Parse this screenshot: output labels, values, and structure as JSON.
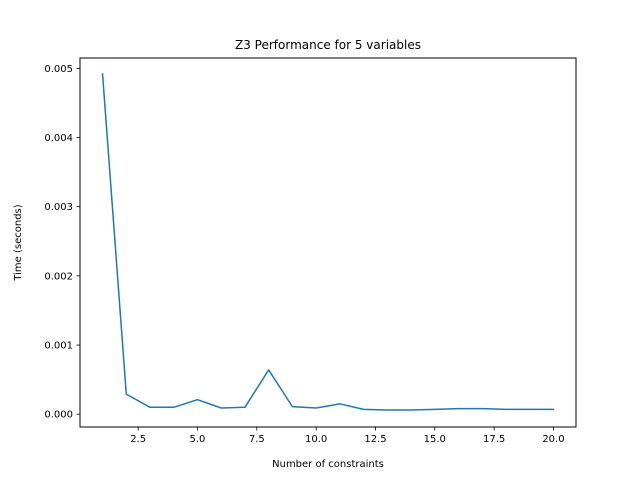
{
  "chart_data": {
    "type": "line",
    "title": "Z3 Performance for 5 variables",
    "xlabel": "Number of constraints",
    "ylabel": "Time (seconds)",
    "xlim": [
      0.05,
      20.95
    ],
    "ylim": [
      -0.000185,
      0.00515
    ],
    "xticks": [
      2.5,
      5.0,
      7.5,
      10.0,
      12.5,
      15.0,
      17.5,
      20.0
    ],
    "xtick_labels": [
      "2.5",
      "5.0",
      "7.5",
      "10.0",
      "12.5",
      "15.0",
      "17.5",
      "20.0"
    ],
    "yticks": [
      0.0,
      0.001,
      0.002,
      0.003,
      0.004,
      0.005
    ],
    "ytick_labels": [
      "0.000",
      "0.001",
      "0.002",
      "0.003",
      "0.004",
      "0.005"
    ],
    "grid": false,
    "legend": "none",
    "series_color": "#1f77b4",
    "x": [
      1,
      2,
      3,
      4,
      5,
      6,
      7,
      8,
      9,
      10,
      11,
      12,
      13,
      14,
      15,
      16,
      17,
      18,
      19,
      20
    ],
    "series": [
      {
        "values": [
          0.00492,
          0.00029,
          0.0001,
          0.0001,
          0.00021,
          9e-05,
          0.0001,
          0.00064,
          0.00011,
          9e-05,
          0.00015,
          7e-05,
          6e-05,
          6e-05,
          7e-05,
          8e-05,
          8e-05,
          7e-05,
          7e-05,
          7e-05
        ]
      }
    ]
  }
}
